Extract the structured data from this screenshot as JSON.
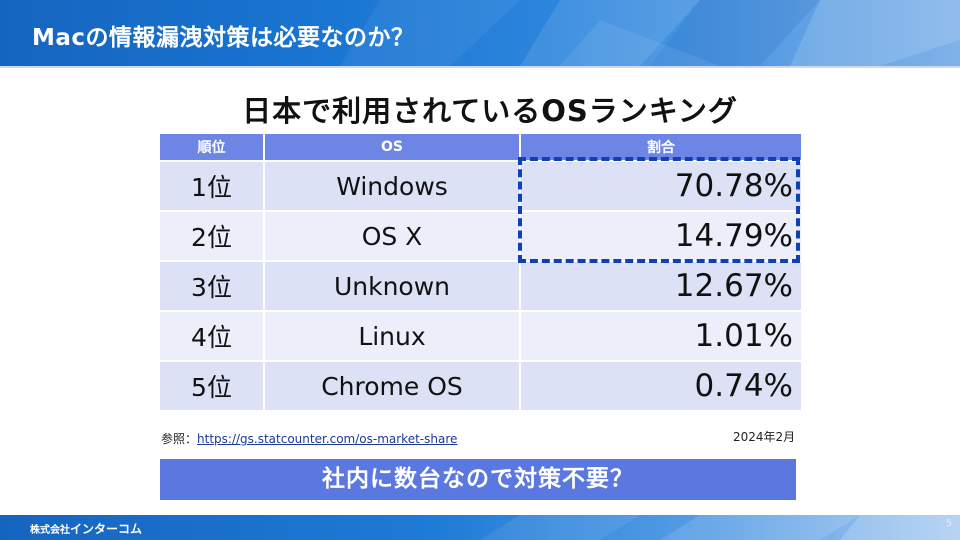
{
  "slide": {
    "title": "Macの情報漏洩対策は必要なのか？",
    "heading": "日本で利用されているOSランキング",
    "table": {
      "headers": [
        "順位",
        "OS",
        "割合"
      ],
      "rows": [
        {
          "rank": "1位",
          "os": "Windows",
          "share": "70.78%"
        },
        {
          "rank": "2位",
          "os": "OS X",
          "share": "14.79%"
        },
        {
          "rank": "3位",
          "os": "Unknown",
          "share": "12.67%"
        },
        {
          "rank": "4位",
          "os": "Linux",
          "share": "1.01%"
        },
        {
          "rank": "5位",
          "os": "Chrome OS",
          "share": "0.74%"
        }
      ]
    },
    "source_label": "参照：",
    "source_url": "https://gs.statcounter.com/os-market-share",
    "date": "2024年2月",
    "question": "社内に数台なので対策不要？",
    "company_small": "株式会社",
    "company_big": "インターコム",
    "page_number": "5"
  },
  "colors": {
    "header_blue": "#1976d2",
    "table_header": "#6d86e6",
    "row_dark": "#dde1f6",
    "row_light": "#eceefa",
    "highlight_dash": "#1040b8",
    "question_bg": "#5b78e0"
  }
}
